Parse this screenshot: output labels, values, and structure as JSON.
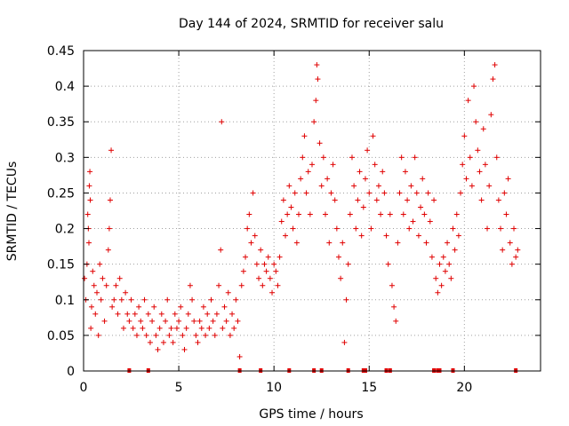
{
  "chart_data": {
    "type": "scatter",
    "title": "Day 144 of 2024, SRMTID for receiver salu",
    "xlabel": "GPS time / hours",
    "ylabel": "SRMTID / TECUs",
    "xlim": [
      0,
      24
    ],
    "ylim": [
      0,
      0.45
    ],
    "xticks": [
      0,
      5,
      10,
      15,
      20
    ],
    "xtick_labels": [
      "0",
      "5",
      "10",
      "15",
      "20"
    ],
    "yticks": [
      0,
      0.05,
      0.1,
      0.15,
      0.2,
      0.25,
      0.3,
      0.35,
      0.4,
      0.45
    ],
    "ytick_labels": [
      "0",
      "0.05",
      "0.1",
      "0.15",
      "0.2",
      "0.25",
      "0.3",
      "0.35",
      "0.4",
      "0.45"
    ],
    "grid": true,
    "marker": "+",
    "color": "#e00000",
    "series": [
      {
        "name": "SRMTID",
        "points": [
          [
            0.05,
            0.13
          ],
          [
            0.12,
            0.1
          ],
          [
            0.18,
            0.15
          ],
          [
            0.22,
            0.22
          ],
          [
            0.25,
            0.2
          ],
          [
            0.28,
            0.18
          ],
          [
            0.3,
            0.26
          ],
          [
            0.33,
            0.28
          ],
          [
            0.35,
            0.24
          ],
          [
            0.38,
            0.06
          ],
          [
            0.42,
            0.09
          ],
          [
            0.48,
            0.14
          ],
          [
            0.55,
            0.12
          ],
          [
            0.62,
            0.08
          ],
          [
            0.7,
            0.11
          ],
          [
            0.78,
            0.05
          ],
          [
            0.85,
            0.15
          ],
          [
            0.92,
            0.1
          ],
          [
            1.0,
            0.13
          ],
          [
            1.1,
            0.07
          ],
          [
            1.2,
            0.12
          ],
          [
            1.3,
            0.17
          ],
          [
            1.35,
            0.2
          ],
          [
            1.4,
            0.24
          ],
          [
            1.45,
            0.31
          ],
          [
            1.5,
            0.09
          ],
          [
            1.6,
            0.1
          ],
          [
            1.7,
            0.12
          ],
          [
            1.8,
            0.08
          ],
          [
            1.9,
            0.13
          ],
          [
            2.0,
            0.1
          ],
          [
            2.1,
            0.06
          ],
          [
            2.2,
            0.11
          ],
          [
            2.3,
            0.08
          ],
          [
            2.4,
            0.07
          ],
          [
            2.5,
            0.1
          ],
          [
            2.6,
            0.06
          ],
          [
            2.7,
            0.08
          ],
          [
            2.8,
            0.05
          ],
          [
            2.9,
            0.09
          ],
          [
            3.0,
            0.07
          ],
          [
            3.1,
            0.06
          ],
          [
            3.2,
            0.1
          ],
          [
            3.3,
            0.05
          ],
          [
            3.4,
            0.08
          ],
          [
            3.5,
            0.04
          ],
          [
            3.6,
            0.07
          ],
          [
            3.7,
            0.09
          ],
          [
            3.8,
            0.05
          ],
          [
            3.9,
            0.03
          ],
          [
            4.0,
            0.06
          ],
          [
            4.1,
            0.08
          ],
          [
            4.2,
            0.04
          ],
          [
            4.3,
            0.07
          ],
          [
            4.4,
            0.1
          ],
          [
            4.5,
            0.05
          ],
          [
            4.6,
            0.06
          ],
          [
            4.7,
            0.04
          ],
          [
            4.8,
            0.08
          ],
          [
            4.9,
            0.06
          ],
          [
            5.0,
            0.07
          ],
          [
            5.1,
            0.09
          ],
          [
            5.2,
            0.05
          ],
          [
            5.3,
            0.03
          ],
          [
            5.4,
            0.06
          ],
          [
            5.5,
            0.08
          ],
          [
            5.6,
            0.12
          ],
          [
            5.7,
            0.1
          ],
          [
            5.8,
            0.07
          ],
          [
            5.9,
            0.05
          ],
          [
            6.0,
            0.04
          ],
          [
            6.1,
            0.07
          ],
          [
            6.2,
            0.06
          ],
          [
            6.3,
            0.09
          ],
          [
            6.4,
            0.05
          ],
          [
            6.5,
            0.08
          ],
          [
            6.6,
            0.06
          ],
          [
            6.7,
            0.1
          ],
          [
            6.8,
            0.07
          ],
          [
            6.9,
            0.05
          ],
          [
            7.0,
            0.08
          ],
          [
            7.1,
            0.12
          ],
          [
            7.2,
            0.17
          ],
          [
            7.25,
            0.35
          ],
          [
            7.3,
            0.06
          ],
          [
            7.4,
            0.09
          ],
          [
            7.5,
            0.07
          ],
          [
            7.6,
            0.11
          ],
          [
            7.7,
            0.05
          ],
          [
            7.8,
            0.08
          ],
          [
            7.9,
            0.06
          ],
          [
            8.0,
            0.1
          ],
          [
            8.1,
            0.07
          ],
          [
            8.2,
            0.02
          ],
          [
            8.3,
            0.12
          ],
          [
            8.4,
            0.14
          ],
          [
            8.5,
            0.16
          ],
          [
            8.6,
            0.2
          ],
          [
            8.7,
            0.22
          ],
          [
            8.8,
            0.18
          ],
          [
            8.9,
            0.25
          ],
          [
            9.0,
            0.19
          ],
          [
            9.1,
            0.15
          ],
          [
            9.2,
            0.13
          ],
          [
            9.3,
            0.17
          ],
          [
            9.4,
            0.12
          ],
          [
            9.5,
            0.15
          ],
          [
            9.6,
            0.14
          ],
          [
            9.7,
            0.16
          ],
          [
            9.8,
            0.13
          ],
          [
            9.9,
            0.11
          ],
          [
            10.0,
            0.15
          ],
          [
            10.1,
            0.14
          ],
          [
            10.2,
            0.12
          ],
          [
            10.3,
            0.16
          ],
          [
            10.4,
            0.21
          ],
          [
            10.5,
            0.24
          ],
          [
            10.6,
            0.19
          ],
          [
            10.7,
            0.22
          ],
          [
            10.8,
            0.26
          ],
          [
            10.9,
            0.23
          ],
          [
            11.0,
            0.2
          ],
          [
            11.1,
            0.25
          ],
          [
            11.2,
            0.18
          ],
          [
            11.3,
            0.22
          ],
          [
            11.4,
            0.27
          ],
          [
            11.5,
            0.3
          ],
          [
            11.6,
            0.33
          ],
          [
            11.7,
            0.25
          ],
          [
            11.8,
            0.28
          ],
          [
            11.9,
            0.22
          ],
          [
            12.0,
            0.29
          ],
          [
            12.1,
            0.35
          ],
          [
            12.2,
            0.38
          ],
          [
            12.25,
            0.43
          ],
          [
            12.3,
            0.41
          ],
          [
            12.4,
            0.32
          ],
          [
            12.5,
            0.26
          ],
          [
            12.6,
            0.3
          ],
          [
            12.7,
            0.22
          ],
          [
            12.8,
            0.27
          ],
          [
            12.9,
            0.18
          ],
          [
            13.0,
            0.25
          ],
          [
            13.1,
            0.29
          ],
          [
            13.2,
            0.24
          ],
          [
            13.3,
            0.2
          ],
          [
            13.4,
            0.16
          ],
          [
            13.5,
            0.13
          ],
          [
            13.6,
            0.18
          ],
          [
            13.7,
            0.04
          ],
          [
            13.8,
            0.1
          ],
          [
            13.9,
            0.15
          ],
          [
            14.0,
            0.22
          ],
          [
            14.1,
            0.3
          ],
          [
            14.2,
            0.26
          ],
          [
            14.3,
            0.2
          ],
          [
            14.4,
            0.24
          ],
          [
            14.5,
            0.28
          ],
          [
            14.6,
            0.19
          ],
          [
            14.7,
            0.23
          ],
          [
            14.8,
            0.27
          ],
          [
            14.9,
            0.31
          ],
          [
            15.0,
            0.25
          ],
          [
            15.1,
            0.2
          ],
          [
            15.2,
            0.33
          ],
          [
            15.3,
            0.29
          ],
          [
            15.4,
            0.24
          ],
          [
            15.5,
            0.26
          ],
          [
            15.6,
            0.22
          ],
          [
            15.7,
            0.28
          ],
          [
            15.8,
            0.25
          ],
          [
            15.9,
            0.19
          ],
          [
            16.0,
            0.15
          ],
          [
            16.1,
            0.22
          ],
          [
            16.2,
            0.12
          ],
          [
            16.3,
            0.09
          ],
          [
            16.4,
            0.07
          ],
          [
            16.5,
            0.18
          ],
          [
            16.6,
            0.25
          ],
          [
            16.7,
            0.3
          ],
          [
            16.8,
            0.22
          ],
          [
            16.9,
            0.28
          ],
          [
            17.0,
            0.24
          ],
          [
            17.1,
            0.2
          ],
          [
            17.2,
            0.26
          ],
          [
            17.3,
            0.21
          ],
          [
            17.4,
            0.3
          ],
          [
            17.5,
            0.25
          ],
          [
            17.6,
            0.19
          ],
          [
            17.7,
            0.23
          ],
          [
            17.8,
            0.27
          ],
          [
            17.9,
            0.22
          ],
          [
            18.0,
            0.18
          ],
          [
            18.1,
            0.25
          ],
          [
            18.2,
            0.21
          ],
          [
            18.3,
            0.16
          ],
          [
            18.4,
            0.24
          ],
          [
            18.5,
            0.13
          ],
          [
            18.6,
            0.11
          ],
          [
            18.7,
            0.15
          ],
          [
            18.8,
            0.12
          ],
          [
            18.9,
            0.16
          ],
          [
            19.0,
            0.14
          ],
          [
            19.1,
            0.18
          ],
          [
            19.2,
            0.15
          ],
          [
            19.3,
            0.13
          ],
          [
            19.4,
            0.2
          ],
          [
            19.5,
            0.17
          ],
          [
            19.6,
            0.22
          ],
          [
            19.7,
            0.19
          ],
          [
            19.8,
            0.25
          ],
          [
            19.9,
            0.29
          ],
          [
            20.0,
            0.33
          ],
          [
            20.1,
            0.27
          ],
          [
            20.2,
            0.38
          ],
          [
            20.3,
            0.3
          ],
          [
            20.4,
            0.26
          ],
          [
            20.5,
            0.4
          ],
          [
            20.6,
            0.35
          ],
          [
            20.7,
            0.31
          ],
          [
            20.8,
            0.28
          ],
          [
            20.9,
            0.24
          ],
          [
            21.0,
            0.34
          ],
          [
            21.1,
            0.29
          ],
          [
            21.2,
            0.2
          ],
          [
            21.3,
            0.26
          ],
          [
            21.4,
            0.36
          ],
          [
            21.5,
            0.41
          ],
          [
            21.6,
            0.43
          ],
          [
            21.7,
            0.3
          ],
          [
            21.8,
            0.24
          ],
          [
            21.9,
            0.2
          ],
          [
            22.0,
            0.17
          ],
          [
            22.1,
            0.25
          ],
          [
            22.2,
            0.22
          ],
          [
            22.3,
            0.27
          ],
          [
            22.4,
            0.18
          ],
          [
            22.5,
            0.15
          ],
          [
            22.6,
            0.2
          ],
          [
            22.7,
            0.16
          ],
          [
            22.8,
            0.17
          ]
        ]
      }
    ],
    "baseline_markers_x": [
      2.4,
      3.4,
      8.2,
      9.3,
      10.8,
      12.1,
      12.5,
      13.9,
      14.7,
      14.8,
      15.9,
      16.1,
      18.4,
      18.6,
      18.7,
      19.4,
      22.7
    ]
  }
}
